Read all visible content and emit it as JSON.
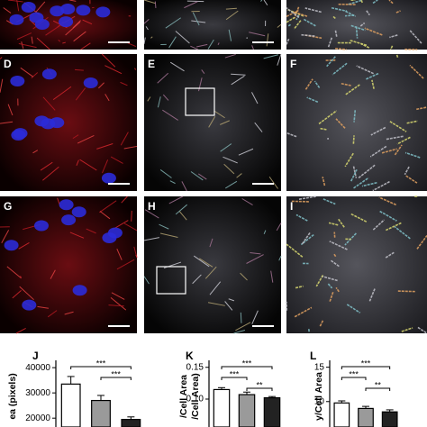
{
  "panels": [
    {
      "label": "D"
    },
    {
      "label": "E"
    },
    {
      "label": "F"
    },
    {
      "label": "G"
    },
    {
      "label": "H"
    },
    {
      "label": "I"
    }
  ],
  "chart_data": [
    {
      "type": "bar",
      "title": "J",
      "ylabel": [
        "ea (pixels)"
      ],
      "values": [
        33500,
        27000,
        19500
      ],
      "errors": [
        3000,
        2000,
        1000
      ],
      "colors": [
        "#ffffff",
        "#9a9a9a",
        "#222222"
      ],
      "ylim": [
        16500,
        42900
      ],
      "yticks": [
        40000,
        30000,
        20000
      ],
      "comparisons": [
        {
          "from": 0,
          "to": 2,
          "label": "***"
        },
        {
          "from": 1,
          "to": 2,
          "label": "***"
        }
      ]
    },
    {
      "type": "bar",
      "title": "K",
      "ylabel": [
        "/Cell Area",
        "/Cell Area)"
      ],
      "values": [
        0.115,
        0.107,
        0.102
      ],
      "errors": [
        0.003,
        0.004,
        0.002
      ],
      "colors": [
        "#ffffff",
        "#9a9a9a",
        "#222222"
      ],
      "ylim": [
        0.056,
        0.161
      ],
      "yticks": [
        0.15,
        {
          "value": 0.1,
          "label": "0.10"
        }
      ],
      "comparisons": [
        {
          "from": 0,
          "to": 2,
          "label": "***"
        },
        {
          "from": 0,
          "to": 1,
          "label": "***"
        },
        {
          "from": 1,
          "to": 2,
          "label": "**"
        }
      ]
    },
    {
      "type": "bar",
      "title": "L",
      "ylabel": [
        "y/Cell Area"
      ],
      "values": [
        9.8,
        9.0,
        8.5
      ],
      "errors": [
        0.3,
        0.3,
        0.3
      ],
      "colors": [
        "#ffffff",
        "#9a9a9a",
        "#222222"
      ],
      "ylim": [
        6.3,
        16
      ],
      "yticks": [
        15,
        10
      ],
      "comparisons": [
        {
          "from": 0,
          "to": 2,
          "label": "***"
        },
        {
          "from": 0,
          "to": 1,
          "label": "***"
        },
        {
          "from": 1,
          "to": 2,
          "label": "**"
        }
      ]
    }
  ]
}
